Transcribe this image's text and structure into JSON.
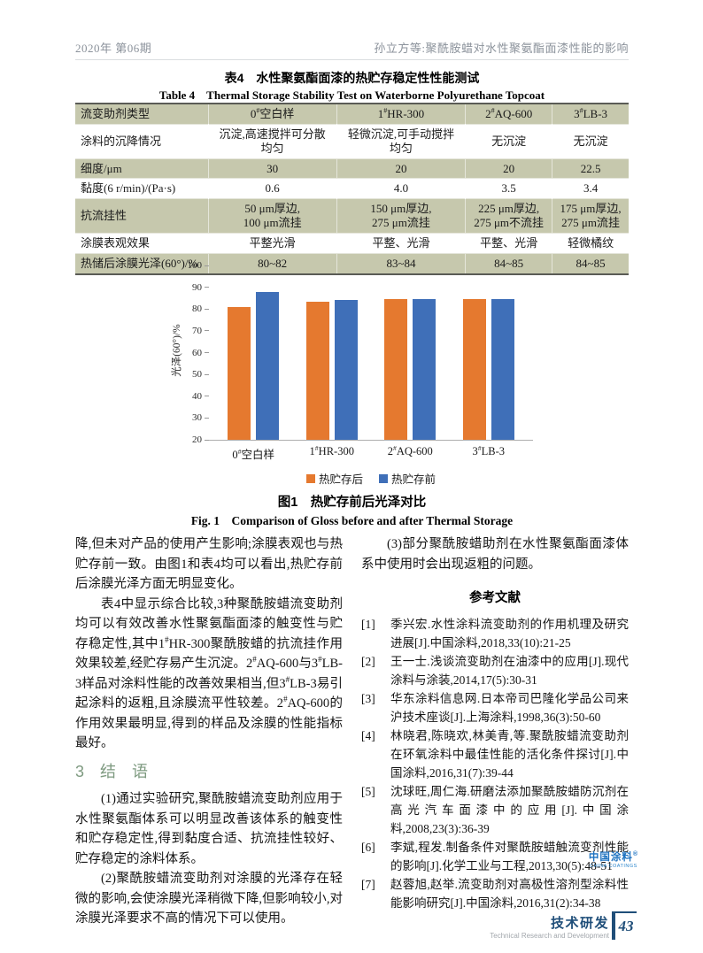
{
  "header": {
    "issue": "2020年 第06期",
    "running_title": "孙立方等:聚酰胺蜡对水性聚氨酯面漆性能的影响"
  },
  "table": {
    "title_cn": "表4　水性聚氨酯面漆的热贮存稳定性性能测试",
    "title_en": "Table 4　Thermal Storage Stability Test on Waterborne Polyurethane Topcoat",
    "columns": [
      "流变助剂类型",
      "0#空白样",
      "1#HR-300",
      "2#AQ-600",
      "3#LB-3"
    ],
    "rows": [
      [
        "涂料的沉降情况",
        "沉淀,高速搅拌可分散\n均匀",
        "轻微沉淀,可手动搅拌\n均匀",
        "无沉淀",
        "无沉淀"
      ],
      [
        "细度/μm",
        "30",
        "20",
        "20",
        "22.5"
      ],
      [
        "黏度(6 r/min)/(Pa·s)",
        "0.6",
        "4.0",
        "3.5",
        "3.4"
      ],
      [
        "抗流挂性",
        "50 μm厚边,\n100 μm流挂",
        "150 μm厚边,\n275 μm流挂",
        "225 μm厚边,\n275 μm不流挂",
        "175 μm厚边,\n275 μm流挂"
      ],
      [
        "涂膜表观效果",
        "平整光滑",
        "平整、光滑",
        "平整、光滑",
        "轻微橘纹"
      ],
      [
        "热储后涂膜光泽(60°)/%",
        "80~82",
        "83~84",
        "84~85",
        "84~85"
      ]
    ]
  },
  "chart_data": {
    "type": "bar",
    "title": "",
    "xlabel": "",
    "ylabel": "光泽(60°)/%",
    "ylim": [
      20,
      100
    ],
    "ytick_step": 10,
    "grid": false,
    "legend_position": "bottom",
    "categories": [
      "0#空白样",
      "1#HR-300",
      "2#AQ-600",
      "3#LB-3"
    ],
    "series": [
      {
        "name": "热贮存后",
        "color": "#e5792f",
        "values": [
          81,
          83.3,
          84.5,
          84.5
        ]
      },
      {
        "name": "热贮存前",
        "color": "#3f6fb8",
        "values": [
          88,
          84,
          84.5,
          84.5
        ]
      }
    ]
  },
  "figure": {
    "caption_cn": "图1　热贮存前后光泽对比",
    "caption_en": "Fig. 1　Comparison of Gloss before and after Thermal Storage"
  },
  "left_column": {
    "paragraph_1": "降,但未对产品的使用产生影响;涂膜表观也与热贮存前一致。由图1和表4均可以看出,热贮存前后涂膜光泽方面无明显变化。",
    "paragraph_2": "表4中显示综合比较,3种聚酰胺蜡流变助剂均可以有效改善水性聚氨酯面漆的触变性与贮存稳定性,其中1#HR-300聚酰胺蜡的抗流挂作用效果较差,经贮存易产生沉淀。2#AQ-600与3#LB-3样品对涂料性能的改善效果相当,但3#LB-3易引起涂料的返粗,且涂膜流平性较差。2#AQ-600的作用效果最明显,得到的样品及涂膜的性能指标最好。",
    "section_heading": "3　结　语",
    "paragraph_3": "(1)通过实验研究,聚酰胺蜡流变助剂应用于水性聚氨酯体系可以明显改善该体系的触变性和贮存稳定性,得到黏度合适、抗流挂性较好、贮存稳定的涂料体系。",
    "paragraph_4": "(2)聚酰胺蜡流变助剂对涂膜的光泽存在轻微的影响,会使涂膜光泽稍微下降,但影响较小,对涂膜光泽要求不高的情况下可以使用。"
  },
  "right_column": {
    "paragraph_1": "(3)部分聚酰胺蜡助剂在水性聚氨酯面漆体系中使用时会出现返粗的问题。",
    "references_heading": "参考文献",
    "references": [
      {
        "num": "[1]",
        "text": "季兴宏.水性涂料流变助剂的作用机理及研究进展[J].中国涂料,2018,33(10):21-25"
      },
      {
        "num": "[2]",
        "text": "王一士.浅谈流变助剂在油漆中的应用[J].现代涂料与涂装,2014,17(5):30-31"
      },
      {
        "num": "[3]",
        "text": "华东涂料信息网.日本帝司巴隆化学品公司来沪技术座谈[J].上海涂料,1998,36(3):50-60"
      },
      {
        "num": "[4]",
        "text": "林晓君,陈晓欢,林美青,等.聚酰胺蜡流变助剂在环氧涂料中最佳性能的活化条件探讨[J].中国涂料,2016,31(7):39-44"
      },
      {
        "num": "[5]",
        "text": "沈球旺,周仁海.研磨法添加聚酰胺蜡防沉剂在高光汽车面漆中的应用[J].中国涂料,2008,23(3):36-39"
      },
      {
        "num": "[6]",
        "text": "李斌,程发.制备条件对聚酰胺蜡触流变剂性能的影响[J].化学工业与工程,2013,30(5):48-51"
      },
      {
        "num": "[7]",
        "text": "赵蓉旭,赵举.流变助剂对高极性溶剂型涂料性能影响研究[J].中国涂料,2016,31(2):34-38"
      }
    ]
  },
  "logo": {
    "name_cn": "中国涂料",
    "reg_mark": "®",
    "name_en": "CHINA COATINGS",
    "color": "#1d72c0"
  },
  "footer": {
    "section_cn": "技术研发",
    "section_en": "Technical Research and Development",
    "page_number": "43"
  }
}
